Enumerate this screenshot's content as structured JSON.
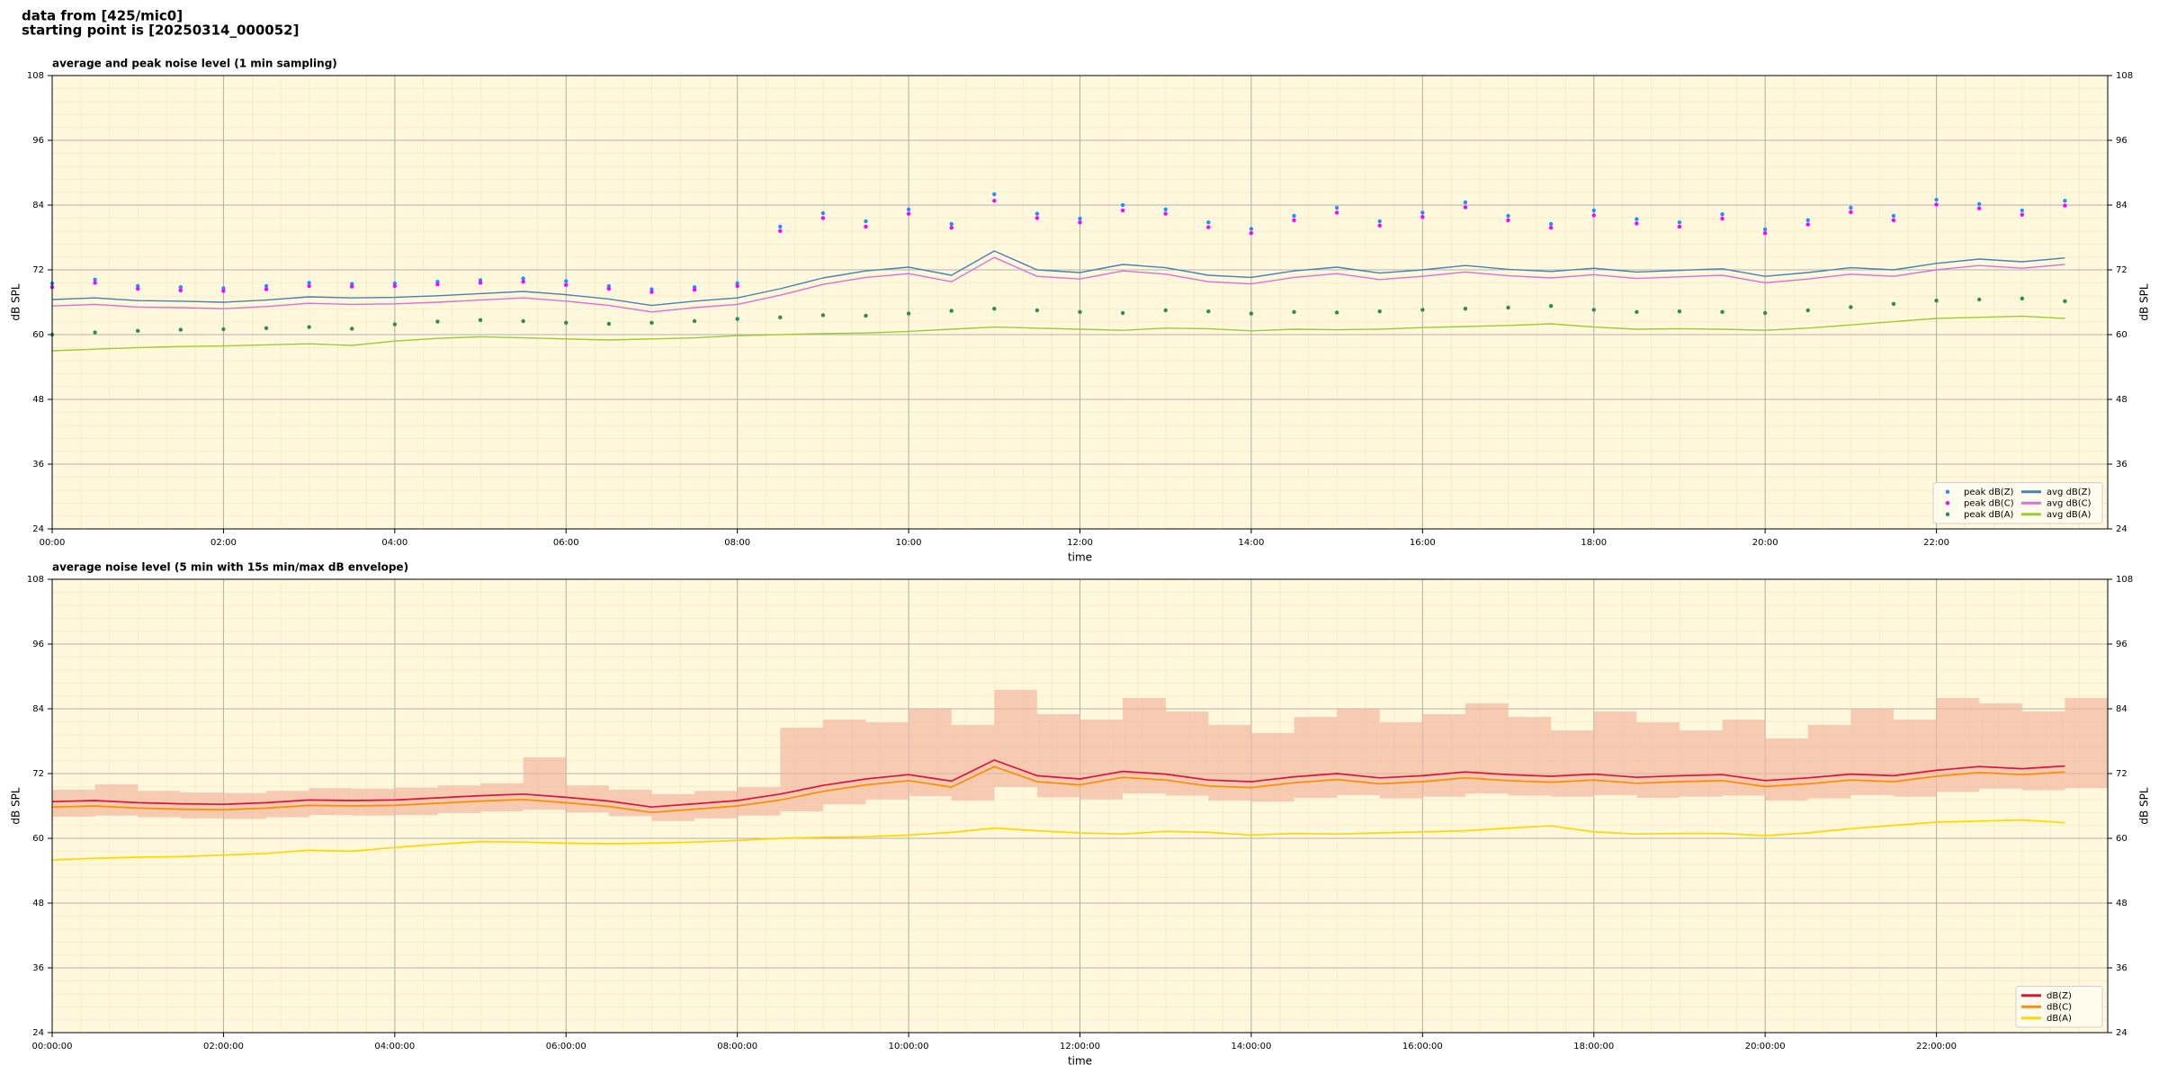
{
  "header": {
    "source": "data from [425/mic0]",
    "start": "starting point is [20250314_000052]"
  },
  "chart_data": [
    {
      "type": "line",
      "title": "average and peak noise level (1 min sampling)",
      "xlabel": "time",
      "ylabel": "dB SPL",
      "xlim": [
        0,
        24
      ],
      "ylim": [
        24,
        108
      ],
      "grid": true,
      "legend": "lower right",
      "background": "#fff8dc",
      "xticks": [
        {
          "value": 0,
          "label": "00:00"
        },
        {
          "value": 2,
          "label": "02:00"
        },
        {
          "value": 4,
          "label": "04:00"
        },
        {
          "value": 6,
          "label": "06:00"
        },
        {
          "value": 8,
          "label": "08:00"
        },
        {
          "value": 10,
          "label": "10:00"
        },
        {
          "value": 12,
          "label": "12:00"
        },
        {
          "value": 14,
          "label": "14:00"
        },
        {
          "value": 16,
          "label": "16:00"
        },
        {
          "value": 18,
          "label": "18:00"
        },
        {
          "value": 20,
          "label": "20:00"
        },
        {
          "value": 22,
          "label": "22:00"
        }
      ],
      "yticks": [
        24,
        36,
        48,
        60,
        72,
        84,
        96,
        108
      ],
      "x": [
        0,
        0.5,
        1,
        1.5,
        2,
        2.5,
        3,
        3.5,
        4,
        4.5,
        5,
        5.5,
        6,
        6.5,
        7,
        7.5,
        8,
        8.5,
        9,
        9.5,
        10,
        10.5,
        11,
        11.5,
        12,
        12.5,
        13,
        13.5,
        14,
        14.5,
        15,
        15.5,
        16,
        16.5,
        17,
        17.5,
        18,
        18.5,
        19,
        19.5,
        20,
        20.5,
        21,
        21.5,
        22,
        22.5,
        23,
        23.5
      ],
      "series": [
        {
          "name": "peak dB(Z)",
          "kind": "scatter",
          "color": "#1e90ff",
          "values": [
            69.5,
            70.2,
            69.0,
            68.8,
            68.6,
            69.0,
            69.6,
            69.4,
            69.5,
            69.8,
            70.1,
            70.4,
            69.9,
            69.0,
            68.4,
            68.8,
            69.5,
            80.0,
            82.5,
            81.0,
            83.2,
            80.5,
            86.0,
            82.4,
            81.5,
            84.0,
            83.2,
            80.8,
            79.6,
            82.0,
            83.5,
            81.0,
            82.6,
            84.5,
            82.0,
            80.5,
            83.0,
            81.4,
            80.8,
            82.3,
            79.5,
            81.2,
            83.5,
            82.0,
            85.0,
            84.2,
            83.0,
            84.8
          ]
        },
        {
          "name": "peak dB(C)",
          "kind": "scatter",
          "color": "#ff00ff",
          "values": [
            68.8,
            69.6,
            68.5,
            68.2,
            68.1,
            68.4,
            69.0,
            68.9,
            69.0,
            69.3,
            69.6,
            69.8,
            69.2,
            68.5,
            67.9,
            68.3,
            69.0,
            79.2,
            81.6,
            80.0,
            82.4,
            79.8,
            84.8,
            81.6,
            80.8,
            83.0,
            82.4,
            79.9,
            78.8,
            81.2,
            82.6,
            80.2,
            81.8,
            83.6,
            81.2,
            79.8,
            82.1,
            80.6,
            80.0,
            81.5,
            78.8,
            80.4,
            82.7,
            81.2,
            84.1,
            83.4,
            82.2,
            83.9
          ]
        },
        {
          "name": "peak dB(A)",
          "kind": "scatter",
          "color": "#2e8b57",
          "values": [
            60.0,
            60.4,
            60.7,
            60.9,
            61.0,
            61.2,
            61.4,
            61.1,
            61.9,
            62.4,
            62.7,
            62.5,
            62.2,
            62.0,
            62.2,
            62.5,
            62.9,
            63.2,
            63.6,
            63.5,
            63.9,
            64.4,
            64.8,
            64.5,
            64.2,
            64.0,
            64.5,
            64.3,
            63.9,
            64.2,
            64.1,
            64.3,
            64.6,
            64.8,
            65.0,
            65.3,
            64.6,
            64.2,
            64.3,
            64.2,
            64.0,
            64.5,
            65.1,
            65.7,
            66.3,
            66.5,
            66.7,
            66.2
          ]
        },
        {
          "name": "avg dB(Z)",
          "kind": "line",
          "color": "#4682b4",
          "values": [
            66.5,
            66.8,
            66.3,
            66.2,
            66.0,
            66.4,
            67.0,
            66.8,
            66.9,
            67.2,
            67.6,
            68.0,
            67.4,
            66.6,
            65.4,
            66.2,
            66.8,
            68.5,
            70.5,
            71.8,
            72.5,
            71.0,
            75.5,
            72.0,
            71.5,
            73.0,
            72.4,
            71.0,
            70.6,
            71.8,
            72.5,
            71.4,
            72.0,
            72.8,
            72.1,
            71.7,
            72.3,
            71.6,
            71.9,
            72.2,
            70.8,
            71.5,
            72.4,
            72.0,
            73.2,
            74.0,
            73.5,
            74.2
          ]
        },
        {
          "name": "avg dB(C)",
          "kind": "line",
          "color": "#da70d6",
          "values": [
            65.3,
            65.6,
            65.1,
            65.0,
            64.8,
            65.2,
            65.8,
            65.6,
            65.7,
            66.0,
            66.4,
            66.8,
            66.2,
            65.4,
            64.2,
            65.0,
            65.6,
            67.3,
            69.3,
            70.6,
            71.3,
            69.8,
            74.3,
            70.8,
            70.3,
            71.8,
            71.2,
            69.8,
            69.4,
            70.6,
            71.3,
            70.2,
            70.8,
            71.6,
            70.9,
            70.5,
            71.1,
            70.4,
            70.7,
            71.0,
            69.6,
            70.3,
            71.2,
            70.8,
            72.0,
            72.8,
            72.3,
            73.0
          ]
        },
        {
          "name": "avg dB(A)",
          "kind": "line",
          "color": "#9acd32",
          "values": [
            57.0,
            57.3,
            57.6,
            57.8,
            57.9,
            58.1,
            58.3,
            58.0,
            58.8,
            59.3,
            59.6,
            59.4,
            59.2,
            59.0,
            59.2,
            59.4,
            59.8,
            60.0,
            60.2,
            60.3,
            60.6,
            61.0,
            61.4,
            61.2,
            61.0,
            60.8,
            61.2,
            61.1,
            60.7,
            61.0,
            60.9,
            61.0,
            61.3,
            61.5,
            61.7,
            62.0,
            61.4,
            61.0,
            61.1,
            61.0,
            60.8,
            61.2,
            61.8,
            62.4,
            63.0,
            63.2,
            63.4,
            63.0
          ]
        }
      ]
    },
    {
      "type": "line",
      "title": "average noise level (5 min with 15s min/max dB envelope)",
      "xlabel": "time",
      "ylabel": "dB SPL",
      "xlim": [
        0,
        24
      ],
      "ylim": [
        24,
        108
      ],
      "grid": true,
      "legend": "lower right",
      "background": "#fff8dc",
      "xticks": [
        {
          "value": 0,
          "label": "00:00:00"
        },
        {
          "value": 2,
          "label": "02:00:00"
        },
        {
          "value": 4,
          "label": "04:00:00"
        },
        {
          "value": 6,
          "label": "06:00:00"
        },
        {
          "value": 8,
          "label": "08:00:00"
        },
        {
          "value": 10,
          "label": "10:00:00"
        },
        {
          "value": 12,
          "label": "12:00:00"
        },
        {
          "value": 14,
          "label": "14:00:00"
        },
        {
          "value": 16,
          "label": "16:00:00"
        },
        {
          "value": 18,
          "label": "18:00:00"
        },
        {
          "value": 20,
          "label": "20:00:00"
        },
        {
          "value": 22,
          "label": "22:00:00"
        }
      ],
      "yticks": [
        24,
        36,
        48,
        60,
        72,
        84,
        96,
        108
      ],
      "x": [
        0,
        0.5,
        1,
        1.5,
        2,
        2.5,
        3,
        3.5,
        4,
        4.5,
        5,
        5.5,
        6,
        6.5,
        7,
        7.5,
        8,
        8.5,
        9,
        9.5,
        10,
        10.5,
        11,
        11.5,
        12,
        12.5,
        13,
        13.5,
        14,
        14.5,
        15,
        15.5,
        16,
        16.5,
        17,
        17.5,
        18,
        18.5,
        19,
        19.5,
        20,
        20.5,
        21,
        21.5,
        22,
        22.5,
        23,
        23.5
      ],
      "envelope": {
        "color": "#f4b8a0",
        "lower": [
          64.0,
          64.2,
          63.9,
          63.7,
          63.6,
          63.9,
          64.3,
          64.2,
          64.3,
          64.7,
          65.0,
          65.3,
          64.8,
          64.1,
          63.2,
          63.7,
          64.2,
          65.0,
          66.3,
          67.2,
          67.8,
          67.0,
          69.5,
          67.6,
          67.2,
          68.3,
          67.9,
          67.0,
          66.8,
          67.5,
          68.0,
          67.4,
          67.7,
          68.3,
          67.9,
          67.7,
          68.0,
          67.5,
          67.7,
          67.9,
          67.0,
          67.4,
          68.0,
          67.7,
          68.6,
          69.2,
          68.9,
          69.3
        ],
        "upper": [
          69.0,
          70.0,
          68.8,
          68.5,
          68.4,
          68.8,
          69.3,
          69.2,
          69.4,
          69.8,
          70.2,
          75.0,
          69.8,
          69.0,
          68.2,
          68.8,
          69.5,
          80.5,
          82.0,
          81.5,
          84.0,
          81.0,
          87.5,
          83.0,
          82.0,
          86.0,
          83.5,
          81.0,
          79.5,
          82.5,
          84.0,
          81.5,
          83.0,
          85.0,
          82.5,
          80.0,
          83.5,
          81.5,
          80.0,
          82.0,
          78.5,
          81.0,
          84.0,
          82.0,
          86.0,
          85.0,
          83.5,
          86.0
        ]
      },
      "series": [
        {
          "name": "dB(Z)",
          "kind": "line",
          "color": "#dc143c",
          "values": [
            66.8,
            67.0,
            66.6,
            66.4,
            66.3,
            66.6,
            67.1,
            67.0,
            67.1,
            67.5,
            67.9,
            68.2,
            67.6,
            66.9,
            65.8,
            66.4,
            67.0,
            68.2,
            69.8,
            71.0,
            71.8,
            70.6,
            74.5,
            71.6,
            71.0,
            72.4,
            71.9,
            70.8,
            70.5,
            71.4,
            72.0,
            71.2,
            71.6,
            72.3,
            71.8,
            71.5,
            71.9,
            71.3,
            71.6,
            71.8,
            70.7,
            71.2,
            71.9,
            71.6,
            72.6,
            73.3,
            72.9,
            73.4
          ]
        },
        {
          "name": "dB(C)",
          "kind": "line",
          "color": "#ff8c00",
          "values": [
            65.8,
            66.0,
            65.6,
            65.4,
            65.3,
            65.6,
            66.1,
            66.0,
            66.1,
            66.5,
            66.9,
            67.2,
            66.6,
            65.9,
            64.8,
            65.4,
            66.0,
            67.1,
            68.7,
            69.9,
            70.7,
            69.5,
            73.3,
            70.5,
            69.9,
            71.3,
            70.8,
            69.7,
            69.4,
            70.3,
            70.9,
            70.1,
            70.5,
            71.2,
            70.7,
            70.4,
            70.8,
            70.2,
            70.5,
            70.7,
            69.6,
            70.1,
            70.8,
            70.5,
            71.5,
            72.2,
            71.8,
            72.3
          ]
        },
        {
          "name": "dB(A)",
          "kind": "line",
          "color": "#ffd700",
          "values": [
            56.0,
            56.3,
            56.5,
            56.6,
            56.9,
            57.2,
            57.8,
            57.6,
            58.3,
            58.9,
            59.4,
            59.3,
            59.1,
            59.0,
            59.1,
            59.3,
            59.6,
            60.0,
            60.2,
            60.3,
            60.6,
            61.1,
            61.9,
            61.4,
            61.0,
            60.8,
            61.3,
            61.1,
            60.6,
            60.9,
            60.8,
            61.0,
            61.2,
            61.4,
            61.9,
            62.3,
            61.2,
            60.8,
            60.9,
            60.9,
            60.5,
            61.0,
            61.8,
            62.4,
            63.0,
            63.2,
            63.4,
            62.9
          ]
        }
      ]
    }
  ]
}
